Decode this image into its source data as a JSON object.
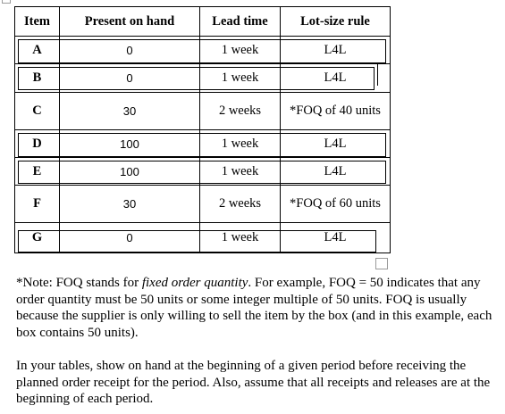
{
  "table": {
    "headers": [
      "Item",
      "Present on hand",
      "Lead time",
      "Lot-size rule"
    ],
    "rows": [
      {
        "item": "A",
        "on_hand": "0",
        "lead_time": "1 week",
        "lot_size": "L4L"
      },
      {
        "item": "B",
        "on_hand": "0",
        "lead_time": "1 week",
        "lot_size": "L4L"
      },
      {
        "item": "C",
        "on_hand": "30",
        "lead_time": "2 weeks",
        "lot_size": "*FOQ of 40 units"
      },
      {
        "item": "D",
        "on_hand": "100",
        "lead_time": "1 week",
        "lot_size": "L4L"
      },
      {
        "item": "E",
        "on_hand": "100",
        "lead_time": "1 week",
        "lot_size": "L4L"
      },
      {
        "item": "F",
        "on_hand": "30",
        "lead_time": "2 weeks",
        "lot_size": "*FOQ of 60 units"
      },
      {
        "item": "G",
        "on_hand": "0",
        "lead_time": "1 week",
        "lot_size": "L4L"
      }
    ]
  },
  "note": {
    "prefix": "*Note: FOQ stands for ",
    "emphasis": "fixed order quantity",
    "rest": ". For example, FOQ = 50 indicates that any order quantity must be 50 units or some integer multiple of 50 units. FOQ is usually because the supplier is only willing to sell the item by the box (and in this example, each box contains 50 units)."
  },
  "instructions": "In your tables, show on hand at the beginning of a given period before receiving the planned order receipt for the period. Also, assume that all receipts and releases are at the beginning of each period."
}
